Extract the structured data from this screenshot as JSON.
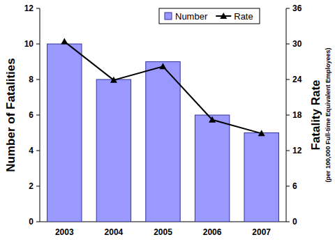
{
  "chart_data": {
    "type": "bar",
    "categories": [
      "2003",
      "2004",
      "2005",
      "2006",
      "2007"
    ],
    "series": [
      {
        "name": "Number",
        "type": "bar",
        "color": "#9999ff",
        "values": [
          10,
          8,
          9,
          6,
          5
        ]
      },
      {
        "name": "Rate",
        "type": "line",
        "color": "#000000",
        "marker": "triangle",
        "axis": "y2",
        "values": [
          30.4,
          23.9,
          26.2,
          17.2,
          14.9
        ]
      }
    ],
    "ylabel": "Number of Fatalities",
    "y2label": [
      "Fatality Rate",
      "(per 100,000 Full-time Equivalent Employees)"
    ],
    "ylim": [
      0,
      12
    ],
    "yticks": [
      0,
      2,
      4,
      6,
      8,
      10,
      12
    ],
    "y2lim": [
      0,
      36
    ],
    "y2ticks": [
      0,
      6,
      12,
      18,
      24,
      30,
      36
    ],
    "grid": false,
    "legend": "top-right"
  }
}
